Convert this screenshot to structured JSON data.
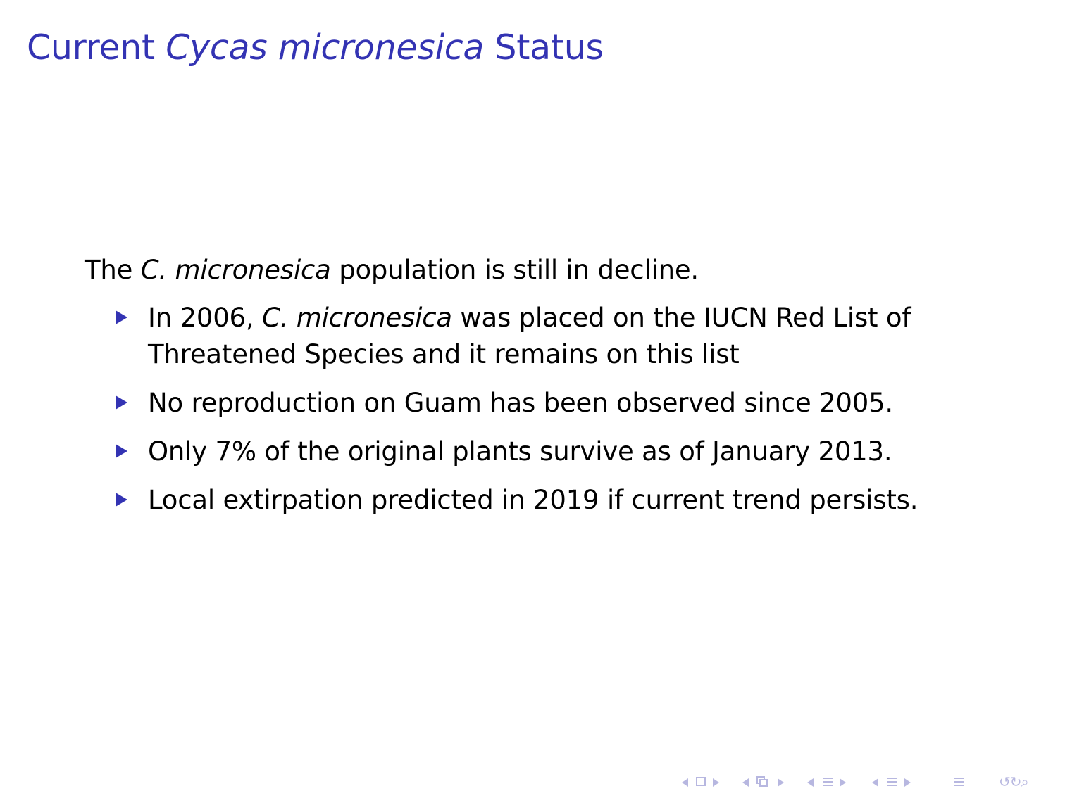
{
  "slide": {
    "title_prefix": "Current ",
    "title_species": "Cycas micronesica",
    "title_suffix": " Status",
    "intro": {
      "prefix": "The ",
      "species": "C. micronesica",
      "suffix": " population is still in decline."
    },
    "bullets": [
      {
        "prefix": "In 2006, ",
        "species": "C. micronesica",
        "text": " was placed on the IUCN Red List of Threatened Species and it remains on this list"
      },
      {
        "text": "No reproduction on Guam has been observed since 2005."
      },
      {
        "text": "Only 7% of the original plants survive as of January 2013."
      },
      {
        "text": "Local extirpation predicted in 2019 if current trend persists."
      }
    ]
  },
  "navigation": {
    "icons": [
      "nav-prev-arrow",
      "frame-icon",
      "nav-next-arrow",
      "section-prev-arrow",
      "subsection-icon",
      "section-next-arrow",
      "subsection-prev-arrow",
      "outline-icon",
      "subsection-next-arrow",
      "slide-prev-arrow",
      "document-icon",
      "slide-next-arrow",
      "menu-icon",
      "back-icon",
      "search-icon"
    ],
    "accent_color": "#3333b3",
    "muted_color": "#b7b7e0"
  }
}
